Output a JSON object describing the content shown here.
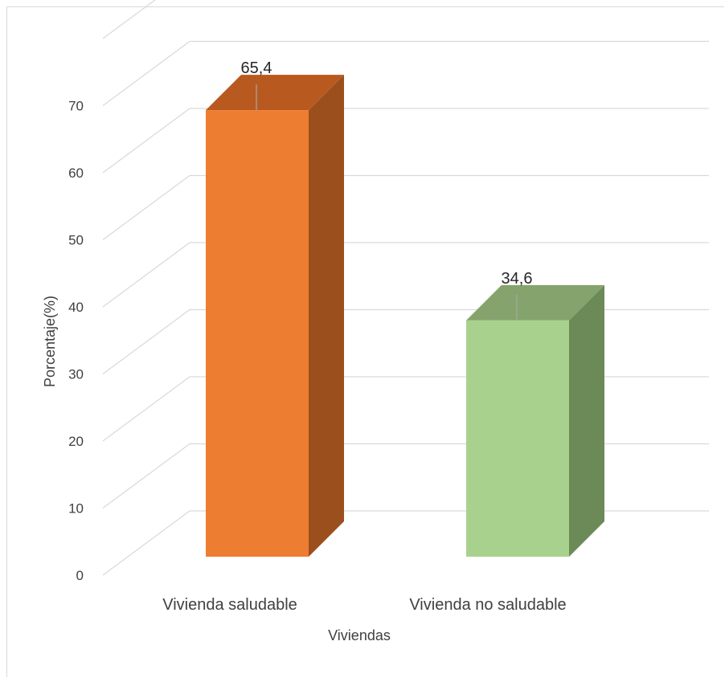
{
  "chart_data": {
    "type": "bar",
    "categories": [
      "Vivienda saludable",
      "Vivienda no saludable"
    ],
    "values": [
      65.4,
      34.6
    ],
    "data_labels": [
      "65,4",
      "34,6"
    ],
    "ylim": [
      0,
      80
    ],
    "yticks": [
      0,
      10,
      20,
      30,
      40,
      50,
      60,
      70
    ],
    "ytick_labels": [
      "0",
      "10",
      "20",
      "30",
      "40",
      "50",
      "60",
      "70"
    ],
    "xlabel": "Viviendas",
    "ylabel": "Porcentaje(%)",
    "title": "",
    "grid": true,
    "legend": "none",
    "style": "3d-column",
    "colors": {
      "front": [
        "#ED7D31",
        "#A9D18E"
      ],
      "side": [
        "#9B4F1D",
        "#6B8A57"
      ],
      "top": [
        "#B85A20",
        "#85A46D"
      ],
      "grid": "#d9d9d9"
    }
  }
}
